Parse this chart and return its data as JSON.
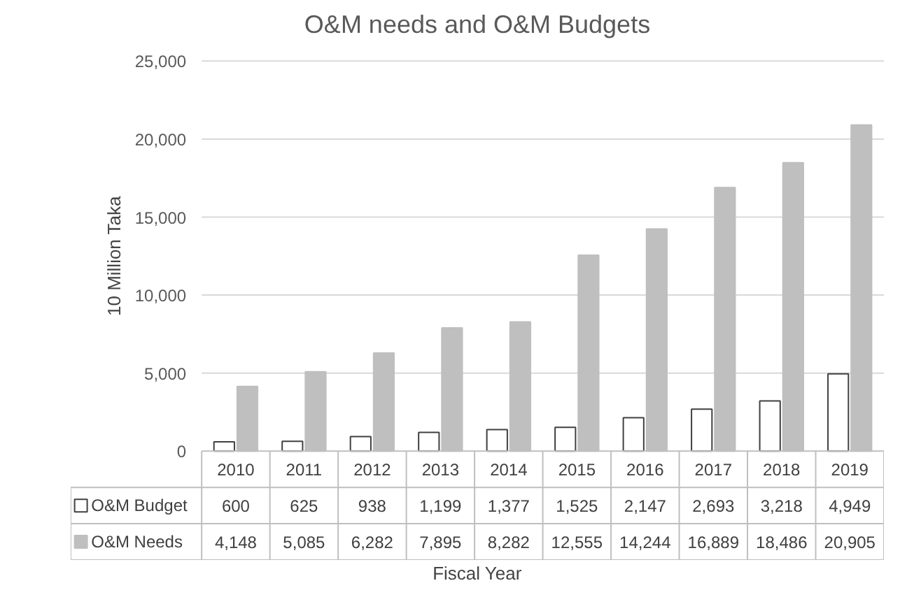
{
  "chart_data": {
    "type": "bar",
    "title": "O&M needs and O&M Budgets",
    "xlabel": "Fiscal Year",
    "ylabel": "10 Million Taka",
    "categories": [
      "2010",
      "2011",
      "2012",
      "2013",
      "2014",
      "2015",
      "2016",
      "2017",
      "2018",
      "2019"
    ],
    "series": [
      {
        "name": "O&M Budget",
        "color": "#ffffff",
        "values": [
          600,
          625,
          938,
          1199,
          1377,
          1525,
          2147,
          2693,
          3218,
          4949
        ],
        "value_labels": [
          "600",
          "625",
          "938",
          "1,199",
          "1,377",
          "1,525",
          "2,147",
          "2,693",
          "3,218",
          "4,949"
        ]
      },
      {
        "name": "O&M Needs",
        "color": "#bfbfbf",
        "values": [
          4148,
          5085,
          6282,
          7895,
          8282,
          12555,
          14244,
          16889,
          18486,
          20905
        ],
        "value_labels": [
          "4,148",
          "5,085",
          "6,282",
          "7,895",
          "8,282",
          "12,555",
          "14,244",
          "16,889",
          "18,486",
          "20,905"
        ]
      }
    ],
    "ylim": [
      0,
      25000
    ],
    "yticks": [
      {
        "value": 0,
        "label": "0"
      },
      {
        "value": 5000,
        "label": "5,000"
      },
      {
        "value": 10000,
        "label": "10,000"
      },
      {
        "value": 15000,
        "label": "15,000"
      },
      {
        "value": 20000,
        "label": "20,000"
      },
      {
        "value": 25000,
        "label": "25,000"
      }
    ],
    "grid": "y",
    "legend": "bottom"
  }
}
